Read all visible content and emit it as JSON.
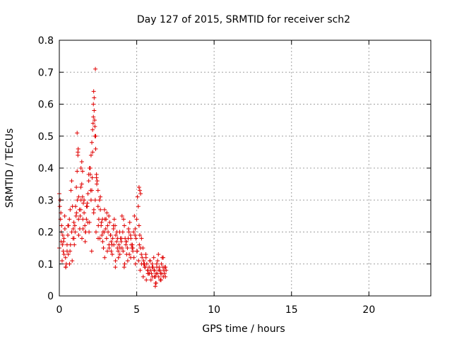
{
  "chart_data": {
    "type": "scatter",
    "title": "Day 127 of 2015, SRMTID for receiver sch2",
    "xlabel": "GPS time / hours",
    "ylabel": "SRMTID / TECUs",
    "xlim": [
      0,
      24
    ],
    "ylim": [
      0,
      0.8
    ],
    "xticks": [
      0,
      5,
      10,
      15,
      20
    ],
    "yticks": [
      0,
      0.1,
      0.2,
      0.3,
      0.4,
      0.5,
      0.6,
      0.7,
      0.8
    ],
    "xtick_labels": [
      "0",
      "5",
      "10",
      "15",
      "20"
    ],
    "ytick_labels": [
      "0",
      "0.1",
      "0.2",
      "0.3",
      "0.4",
      "0.5",
      "0.6",
      "0.7",
      "0.8"
    ],
    "grid": true,
    "marker": "+",
    "marker_color": "#e00000",
    "series": [
      {
        "name": "sch2",
        "x": [
          0.0,
          0.05,
          0.1,
          0.15,
          0.2,
          0.25,
          0.3,
          0.35,
          0.4,
          0.45,
          0.5,
          0.55,
          0.6,
          0.65,
          0.7,
          0.75,
          0.8,
          0.85,
          0.9,
          0.95,
          1.0,
          1.05,
          1.1,
          1.15,
          1.2,
          1.25,
          1.3,
          1.35,
          1.4,
          1.45,
          1.5,
          1.55,
          1.6,
          1.65,
          1.7,
          1.75,
          1.8,
          1.85,
          1.9,
          1.95,
          2.0,
          2.05,
          2.1,
          2.15,
          2.2,
          2.25,
          2.3,
          2.35,
          2.4,
          2.45,
          2.5,
          2.55,
          2.6,
          2.65,
          2.7,
          2.75,
          2.8,
          2.85,
          2.9,
          2.95,
          3.0,
          3.05,
          3.1,
          3.15,
          3.2,
          3.25,
          3.3,
          3.35,
          3.4,
          3.45,
          3.5,
          3.55,
          3.6,
          3.65,
          3.7,
          3.75,
          3.8,
          3.85,
          3.9,
          3.95,
          4.0,
          4.05,
          4.1,
          4.15,
          4.2,
          4.25,
          4.3,
          4.35,
          4.4,
          4.45,
          4.5,
          4.55,
          4.6,
          4.65,
          4.7,
          4.75,
          4.8,
          4.85,
          4.9,
          4.95,
          5.0,
          5.05,
          5.1,
          5.15,
          5.2,
          5.25,
          5.3,
          5.35,
          5.4,
          5.45,
          5.5,
          5.55,
          5.6,
          5.65,
          5.7,
          5.75,
          5.8,
          5.85,
          5.9,
          5.95,
          6.0,
          6.05,
          6.1,
          6.15,
          6.2,
          6.25,
          6.3,
          6.35,
          6.4,
          6.45,
          6.5,
          6.55,
          6.6,
          6.65,
          6.7,
          6.75,
          6.8,
          6.85,
          6.9,
          0.0,
          0.08,
          0.12,
          0.18,
          0.22,
          0.3,
          0.36,
          0.42,
          0.5,
          0.58,
          0.66,
          0.72,
          0.8,
          0.88,
          0.94,
          1.02,
          1.08,
          1.16,
          1.24,
          1.32,
          1.38,
          1.46,
          1.52,
          1.6,
          1.68,
          1.76,
          1.84,
          1.92,
          2.02,
          2.12,
          2.22,
          2.32,
          2.42,
          2.52,
          2.62,
          2.72,
          2.82,
          2.92,
          3.02,
          3.12,
          3.22,
          3.32,
          3.42,
          3.52,
          3.62,
          3.72,
          3.82,
          3.92,
          4.02,
          4.12,
          4.22,
          4.32,
          4.42,
          4.52,
          4.62,
          4.72,
          4.82,
          4.92,
          5.02,
          5.12,
          5.22,
          5.32,
          5.42,
          5.52,
          5.62,
          5.72,
          5.82,
          5.92,
          6.02,
          6.12,
          6.22,
          6.32,
          6.42,
          6.52,
          6.62,
          6.72,
          6.82,
          0.03,
          0.13,
          0.27,
          0.41,
          0.55,
          0.69,
          0.83,
          0.97,
          1.11,
          1.25,
          1.39,
          1.53,
          1.67,
          1.81,
          1.95,
          2.09,
          2.23,
          2.37,
          2.51,
          2.65,
          2.79,
          2.93,
          3.07,
          3.21,
          3.35,
          3.49,
          3.63,
          3.77,
          3.91,
          4.05,
          4.19,
          4.33,
          4.47,
          4.61,
          4.75,
          4.89,
          5.03,
          5.17,
          5.31,
          5.45,
          5.59,
          5.73,
          5.87,
          6.01,
          6.15,
          6.29,
          6.43,
          6.57,
          6.71,
          6.85,
          1.15,
          1.2,
          1.22,
          1.4,
          1.45,
          1.5,
          1.9,
          2.0,
          2.05,
          2.1,
          2.15,
          2.18,
          2.2,
          2.22,
          2.25,
          2.28,
          2.3,
          2.33,
          2.35,
          2.4,
          2.5,
          5.15,
          5.2,
          5.25,
          6.2,
          6.25
        ],
        "y": [
          0.32,
          0.3,
          0.26,
          0.22,
          0.16,
          0.14,
          0.18,
          0.25,
          0.12,
          0.1,
          0.14,
          0.19,
          0.22,
          0.24,
          0.27,
          0.33,
          0.36,
          0.28,
          0.21,
          0.18,
          0.22,
          0.28,
          0.34,
          0.39,
          0.44,
          0.31,
          0.27,
          0.25,
          0.3,
          0.35,
          0.31,
          0.29,
          0.26,
          0.22,
          0.2,
          0.24,
          0.28,
          0.32,
          0.36,
          0.4,
          0.38,
          0.3,
          0.33,
          0.45,
          0.56,
          0.62,
          0.5,
          0.46,
          0.38,
          0.36,
          0.28,
          0.24,
          0.3,
          0.27,
          0.22,
          0.19,
          0.17,
          0.15,
          0.2,
          0.24,
          0.21,
          0.18,
          0.14,
          0.2,
          0.25,
          0.23,
          0.19,
          0.17,
          0.16,
          0.18,
          0.21,
          0.24,
          0.22,
          0.19,
          0.17,
          0.15,
          0.14,
          0.16,
          0.2,
          0.18,
          0.17,
          0.15,
          0.2,
          0.24,
          0.22,
          0.18,
          0.16,
          0.13,
          0.15,
          0.18,
          0.2,
          0.23,
          0.19,
          0.16,
          0.15,
          0.14,
          0.2,
          0.25,
          0.21,
          0.18,
          0.24,
          0.31,
          0.28,
          0.22,
          0.19,
          0.15,
          0.13,
          0.12,
          0.15,
          0.11,
          0.1,
          0.09,
          0.12,
          0.1,
          0.08,
          0.07,
          0.09,
          0.11,
          0.08,
          0.07,
          0.1,
          0.09,
          0.12,
          0.08,
          0.06,
          0.07,
          0.09,
          0.11,
          0.13,
          0.09,
          0.08,
          0.07,
          0.1,
          0.12,
          0.09,
          0.08,
          0.07,
          0.09,
          0.08,
          0.15,
          0.24,
          0.17,
          0.11,
          0.19,
          0.13,
          0.21,
          0.09,
          0.16,
          0.13,
          0.1,
          0.16,
          0.2,
          0.18,
          0.23,
          0.2,
          0.25,
          0.3,
          0.24,
          0.21,
          0.27,
          0.18,
          0.24,
          0.3,
          0.2,
          0.28,
          0.23,
          0.2,
          0.33,
          0.37,
          0.26,
          0.3,
          0.35,
          0.22,
          0.18,
          0.23,
          0.2,
          0.27,
          0.24,
          0.22,
          0.15,
          0.19,
          0.13,
          0.16,
          0.09,
          0.2,
          0.12,
          0.15,
          0.18,
          0.14,
          0.1,
          0.17,
          0.11,
          0.13,
          0.18,
          0.16,
          0.12,
          0.1,
          0.14,
          0.11,
          0.08,
          0.1,
          0.06,
          0.09,
          0.05,
          0.08,
          0.07,
          0.05,
          0.06,
          0.08,
          0.04,
          0.07,
          0.06,
          0.05,
          0.07,
          0.06,
          0.09,
          0.28,
          0.2,
          0.17,
          0.09,
          0.22,
          0.14,
          0.11,
          0.16,
          0.26,
          0.19,
          0.34,
          0.21,
          0.17,
          0.29,
          0.23,
          0.14,
          0.27,
          0.2,
          0.18,
          0.31,
          0.24,
          0.12,
          0.26,
          0.16,
          0.14,
          0.22,
          0.11,
          0.18,
          0.13,
          0.25,
          0.09,
          0.17,
          0.21,
          0.12,
          0.15,
          0.19,
          0.14,
          0.16,
          0.18,
          0.1,
          0.13,
          0.07,
          0.11,
          0.09,
          0.06,
          0.1,
          0.08,
          0.05,
          0.12,
          0.06,
          0.51,
          0.45,
          0.46,
          0.4,
          0.42,
          0.39,
          0.38,
          0.4,
          0.44,
          0.48,
          0.52,
          0.54,
          0.6,
          0.64,
          0.58,
          0.55,
          0.53,
          0.71,
          0.5,
          0.37,
          0.33,
          0.34,
          0.33,
          0.32,
          0.03,
          0.04
        ]
      }
    ]
  }
}
